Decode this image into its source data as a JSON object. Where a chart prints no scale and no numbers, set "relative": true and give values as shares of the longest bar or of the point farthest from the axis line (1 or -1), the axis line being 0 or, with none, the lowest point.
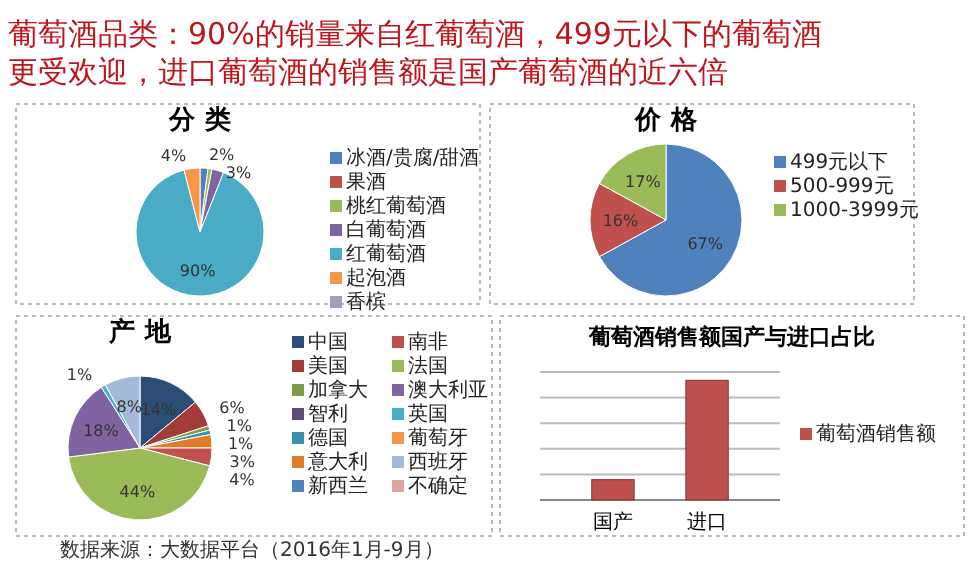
{
  "chart_data": [
    {
      "type": "other",
      "title": "葡萄酒品类：90%的销量来自红葡萄酒，499元以下的葡萄酒更受欢迎，进口葡萄酒的销售额是国产葡萄酒的近六倍",
      "annotations": [
        "数据来源：大数据平台（2016年1月-9月）"
      ]
    },
    {
      "type": "pie",
      "title": "分 类",
      "categories": [
        "冰酒/贵腐/甜酒",
        "果酒",
        "桃红葡萄酒",
        "白葡萄酒",
        "红葡萄酒",
        "起泡酒",
        "香槟"
      ],
      "values": [
        2,
        0,
        1,
        3,
        90,
        4,
        0
      ],
      "colors": [
        "#4f81bd",
        "#c0504d",
        "#9bbb59",
        "#8064a2",
        "#4bacc6",
        "#f79646",
        "#a99bbd"
      ],
      "value_labels": [
        "2%",
        null,
        null,
        "3%",
        "90%",
        "4%",
        null
      ],
      "legend": "right"
    },
    {
      "type": "pie",
      "title": "价 格",
      "categories": [
        "499元以下",
        "500-999元",
        "1000-3999元"
      ],
      "values": [
        67,
        16,
        17
      ],
      "colors": [
        "#4f81bd",
        "#c0504d",
        "#9bbb59"
      ],
      "value_labels": [
        "67%",
        "16%",
        "17%"
      ],
      "legend": "right"
    },
    {
      "type": "pie",
      "title": "产 地",
      "categories": [
        "中国",
        "美国",
        "加拿大",
        "智利",
        "德国",
        "意大利",
        "新西兰",
        "南非",
        "法国",
        "澳大利亚",
        "英国",
        "葡萄牙",
        "西班牙",
        "不确定"
      ],
      "values": [
        14,
        6,
        1,
        0,
        1,
        3,
        0,
        4,
        44,
        18,
        1,
        0,
        8,
        0
      ],
      "colors": [
        "#2c4d75",
        "#a33b38",
        "#7f9a48",
        "#5e4b7a",
        "#3a8fa8",
        "#e07b2a",
        "#4f81bd",
        "#c0504d",
        "#9bbb59",
        "#8064a2",
        "#4bacc6",
        "#f79646",
        "#a5b9d9",
        "#d9a3a2"
      ],
      "value_labels": [
        "14%",
        "6%",
        "1%",
        null,
        "1%",
        "3%",
        null,
        "4%",
        "44%",
        "18%",
        "1%",
        null,
        "8%",
        null
      ],
      "legend": "right"
    },
    {
      "type": "bar",
      "title": "葡萄酒销售额国产与进口占比",
      "categories": [
        "国产",
        "进口"
      ],
      "series": [
        {
          "name": "葡萄酒销售额",
          "color": "#c0504d",
          "values": [
            0.17,
            1
          ]
        }
      ],
      "relative": true,
      "grid": "y",
      "legend": "right"
    }
  ]
}
